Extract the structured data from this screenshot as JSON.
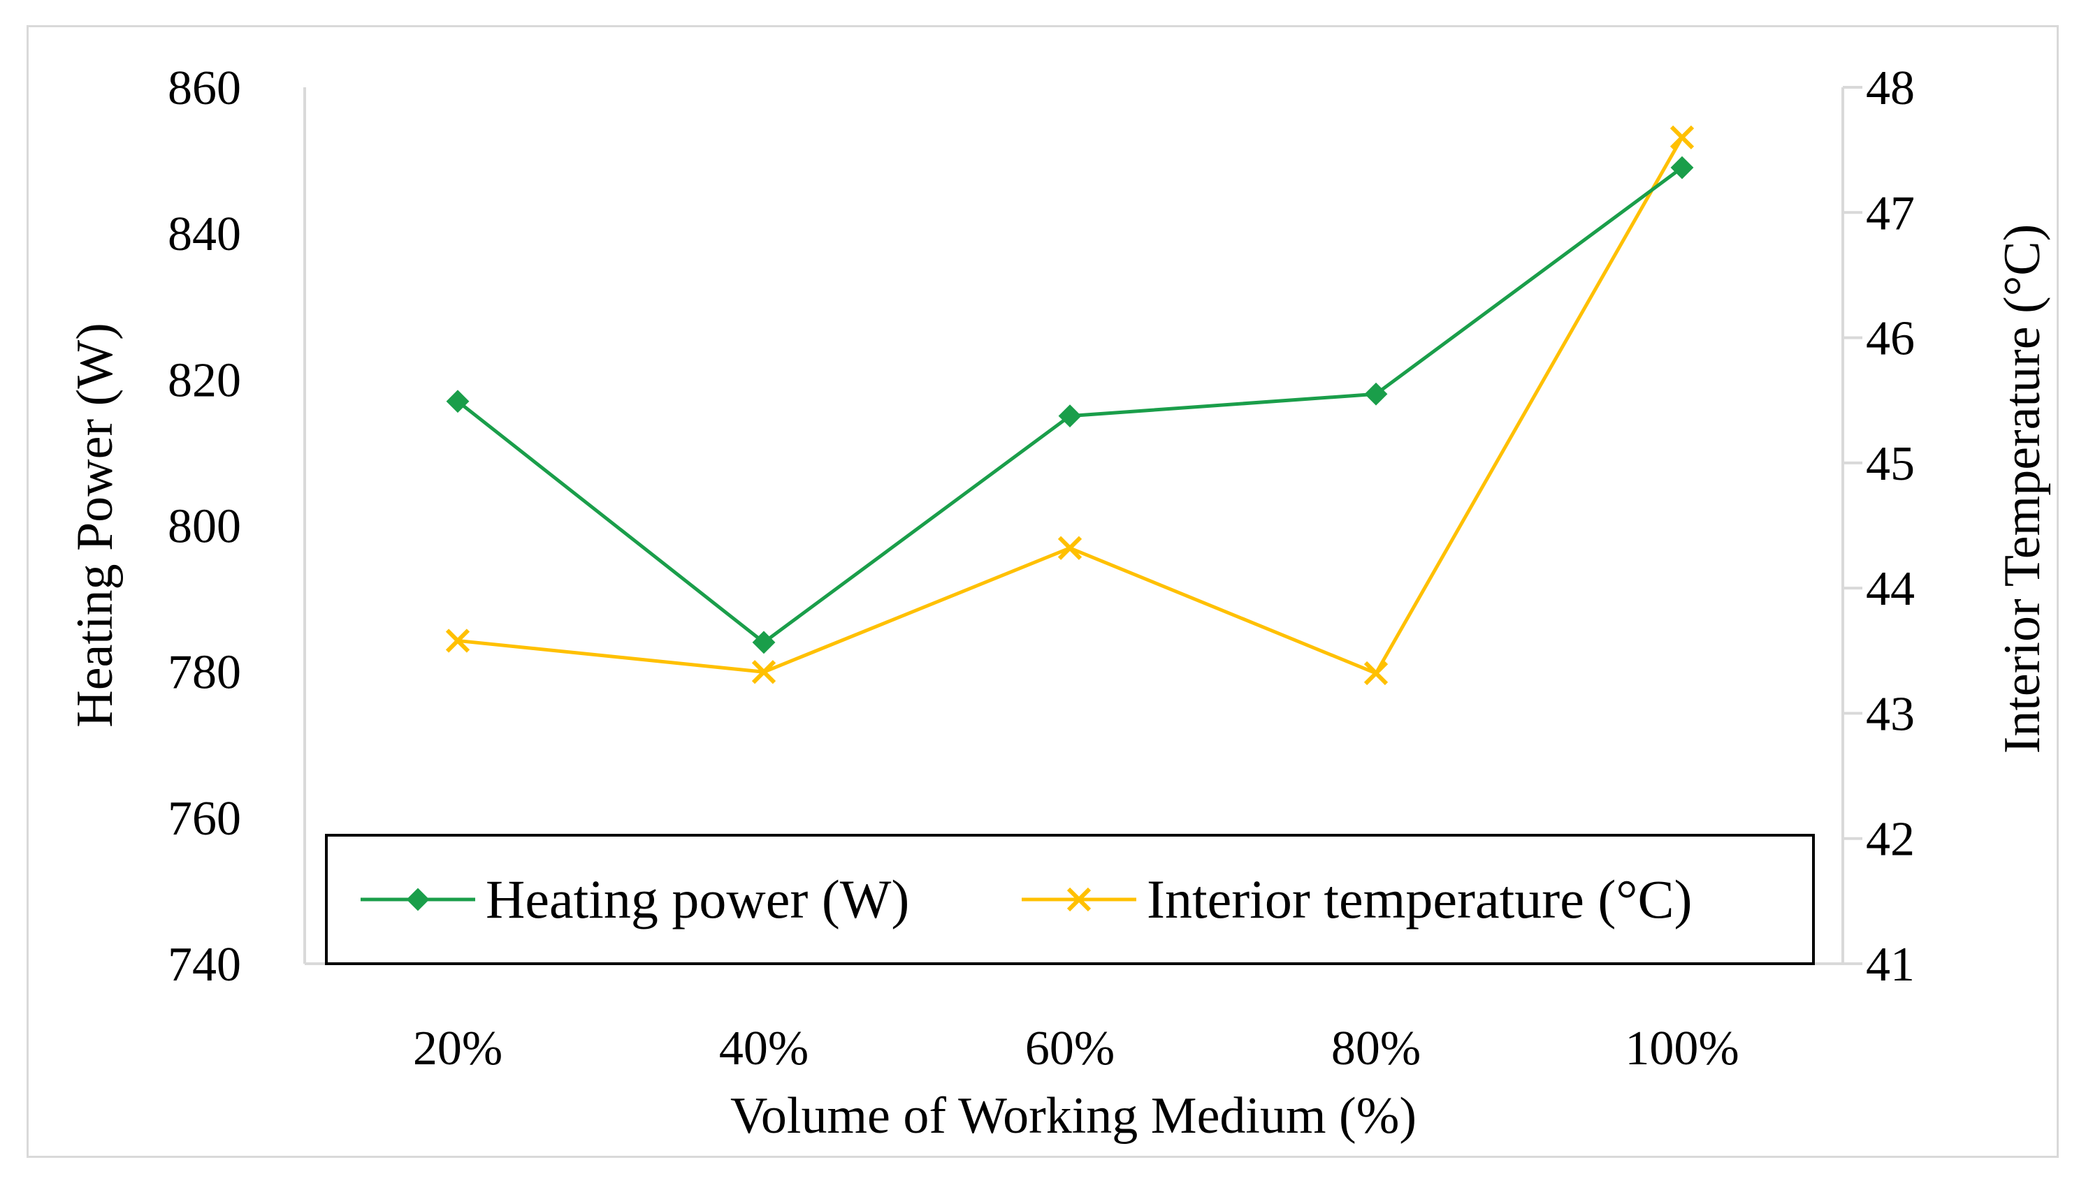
{
  "chart_data": {
    "type": "line",
    "title": "",
    "xlabel": "Volume of Working Medium (%)",
    "ylabel": "Heating Power (W)",
    "y2label": "Interior Temperature (°C)",
    "categories": [
      "20%",
      "40%",
      "60%",
      "80%",
      "100%"
    ],
    "ylim": [
      740,
      860
    ],
    "yticks": [
      740,
      760,
      780,
      800,
      820,
      840,
      860
    ],
    "y2lim": [
      41,
      48
    ],
    "y2ticks": [
      41,
      42,
      43,
      44,
      45,
      46,
      47,
      48
    ],
    "legend_position": "bottom-center",
    "series": [
      {
        "name": "Heating power (W)",
        "axis": "left",
        "marker": "diamond",
        "color": "#1a9e4a",
        "marker_color": "#1a9e4a",
        "values": [
          817,
          784,
          815,
          818,
          849
        ]
      },
      {
        "name": "Interior temperature (°C)",
        "axis": "right",
        "marker": "x",
        "color": "#ffc000",
        "marker_color": "#ffc000",
        "values": [
          43.58,
          43.33,
          44.32,
          43.32,
          47.6
        ]
      }
    ]
  }
}
